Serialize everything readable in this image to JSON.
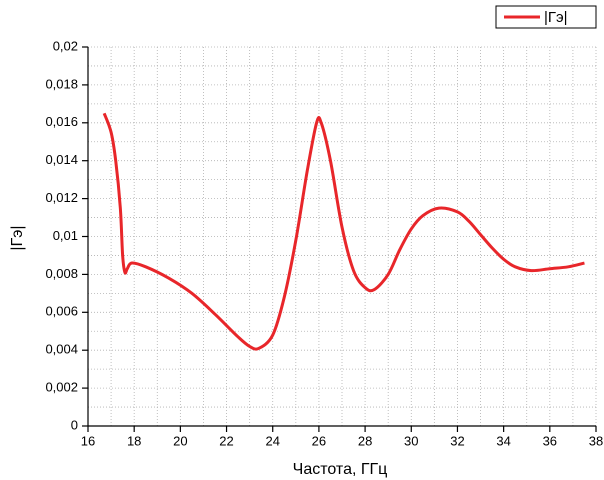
{
  "chart_data": {
    "type": "line",
    "x_label": "Частота, ГГц",
    "y_label": "|Гэ|",
    "xlim": [
      16,
      38
    ],
    "ylim": [
      0,
      0.02
    ],
    "xticks": [
      16,
      18,
      20,
      22,
      24,
      26,
      28,
      30,
      32,
      34,
      36,
      38
    ],
    "yticks": [
      0,
      {
        "value": 0.002,
        "label": "0,002"
      },
      {
        "value": 0.004,
        "label": "0,004"
      },
      {
        "value": 0.006,
        "label": "0,006"
      },
      {
        "value": 0.008,
        "label": "0,008"
      },
      {
        "value": 0.01,
        "label": "0,01"
      },
      {
        "value": 0.012,
        "label": "0,012"
      },
      {
        "value": 0.014,
        "label": "0,014"
      },
      {
        "value": 0.016,
        "label": "0,016"
      },
      {
        "value": 0.018,
        "label": "0,018"
      },
      {
        "value": 0.02,
        "label": "0,02"
      }
    ],
    "grid": true,
    "legend": "top-right",
    "x": [
      16.7,
      17.0,
      17.2,
      17.4,
      17.5,
      17.6,
      17.7,
      17.9,
      18.5,
      19.5,
      20.5,
      21.5,
      22.5,
      23.0,
      23.4,
      24.0,
      24.5,
      25.0,
      25.5,
      25.9,
      26.1,
      26.5,
      27.0,
      27.5,
      28.0,
      28.4,
      29.0,
      29.5,
      30.0,
      30.5,
      31.2,
      32.0,
      32.5,
      33.0,
      33.5,
      34.0,
      34.5,
      35.2,
      36.0,
      36.8,
      37.5
    ],
    "series": [
      {
        "name": "|Гэ|",
        "color": "#e8262a",
        "values": [
          0.0165,
          0.0155,
          0.014,
          0.0115,
          0.009,
          0.0081,
          0.0083,
          0.0086,
          0.0084,
          0.0078,
          0.007,
          0.0059,
          0.0047,
          0.0042,
          0.0041,
          0.0048,
          0.0068,
          0.0098,
          0.0135,
          0.016,
          0.016,
          0.014,
          0.0105,
          0.0082,
          0.0073,
          0.0072,
          0.008,
          0.0093,
          0.0104,
          0.0111,
          0.0115,
          0.0113,
          0.0108,
          0.0101,
          0.0094,
          0.0088,
          0.0084,
          0.0082,
          0.0083,
          0.0084,
          0.0086
        ]
      }
    ]
  }
}
